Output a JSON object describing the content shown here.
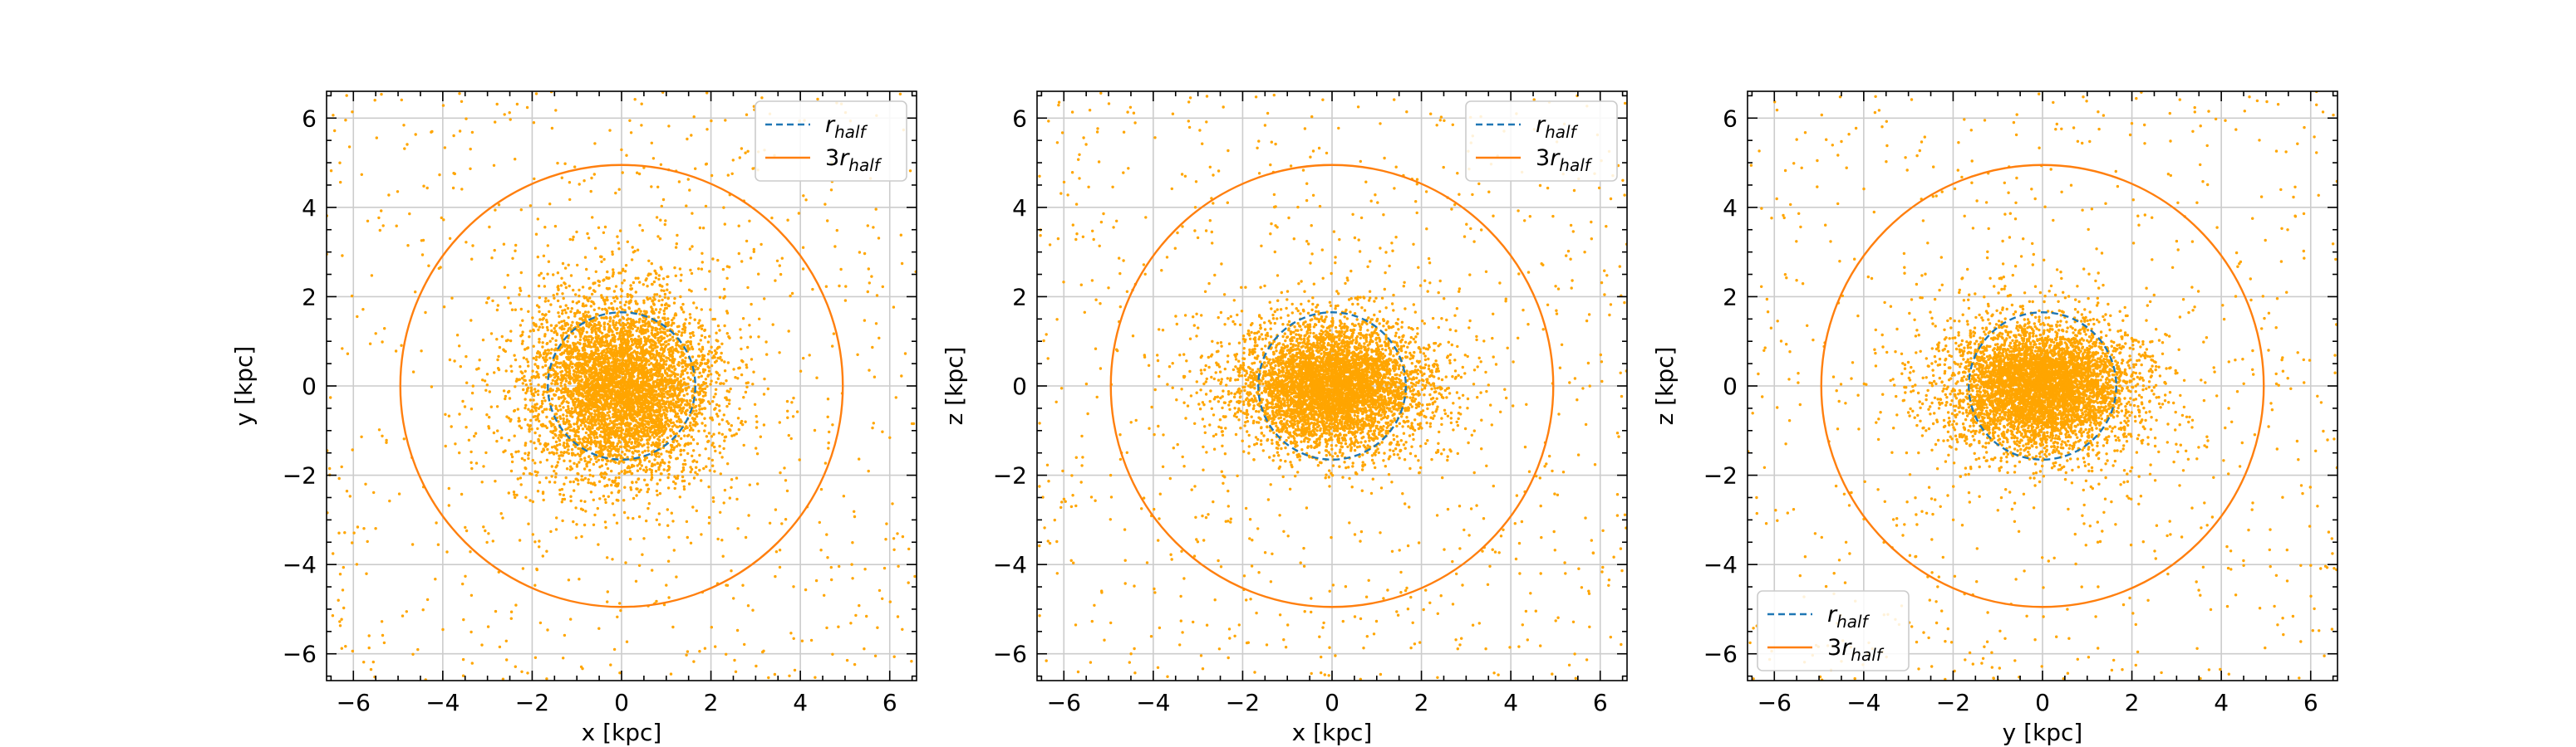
{
  "colors": {
    "points": "#ffa500",
    "rhalf_circle": "#1f77b4",
    "three_rhalf_circle": "#ff7f0e",
    "grid": "#cccccc",
    "axes": "#000000",
    "legend_border": "#cccccc"
  },
  "chart_data": [
    {
      "type": "scatter",
      "xlabel": "x [kpc]",
      "ylabel": "y [kpc]",
      "xlim": [
        -6.6,
        6.6
      ],
      "ylim": [
        -6.6,
        6.6
      ],
      "xticks": [
        -6,
        -4,
        -2,
        0,
        2,
        4,
        6
      ],
      "yticks": [
        -6,
        -4,
        -2,
        0,
        2,
        4,
        6
      ],
      "x_tick_labels": [
        "−6",
        "−4",
        "−2",
        "0",
        "2",
        "4",
        "6"
      ],
      "y_tick_labels": [
        "−6",
        "−4",
        "−2",
        "0",
        "2",
        "4",
        "6"
      ],
      "grid": true,
      "legend_position": "top-right",
      "points": {
        "count": 6000,
        "scale_x": 1.1,
        "scale_y": 1.1
      },
      "circles": [
        {
          "name": "r_half",
          "label_main": "r",
          "label_sub": "half",
          "radius": 1.65,
          "style": "dashed"
        },
        {
          "name": "3r_half",
          "label_main": "3r",
          "label_sub": "half",
          "radius": 4.95,
          "style": "solid"
        }
      ]
    },
    {
      "type": "scatter",
      "xlabel": "x [kpc]",
      "ylabel": "z [kpc]",
      "xlim": [
        -6.6,
        6.6
      ],
      "ylim": [
        -6.6,
        6.6
      ],
      "xticks": [
        -6,
        -4,
        -2,
        0,
        2,
        4,
        6
      ],
      "yticks": [
        -6,
        -4,
        -2,
        0,
        2,
        4,
        6
      ],
      "x_tick_labels": [
        "−6",
        "−4",
        "−2",
        "0",
        "2",
        "4",
        "6"
      ],
      "y_tick_labels": [
        "−6",
        "−4",
        "−2",
        "0",
        "2",
        "4",
        "6"
      ],
      "grid": true,
      "legend_position": "top-right",
      "points": {
        "count": 6000,
        "scale_x": 1.1,
        "scale_y": 0.75
      },
      "circles": [
        {
          "name": "r_half",
          "label_main": "r",
          "label_sub": "half",
          "radius": 1.65,
          "style": "dashed"
        },
        {
          "name": "3r_half",
          "label_main": "3r",
          "label_sub": "half",
          "radius": 4.95,
          "style": "solid"
        }
      ]
    },
    {
      "type": "scatter",
      "xlabel": "y [kpc]",
      "ylabel": "z [kpc]",
      "xlim": [
        -6.6,
        6.6
      ],
      "ylim": [
        -6.6,
        6.6
      ],
      "xticks": [
        -6,
        -4,
        -2,
        0,
        2,
        4,
        6
      ],
      "yticks": [
        -6,
        -4,
        -2,
        0,
        2,
        4,
        6
      ],
      "x_tick_labels": [
        "−6",
        "−4",
        "−2",
        "0",
        "2",
        "4",
        "6"
      ],
      "y_tick_labels": [
        "−6",
        "−4",
        "−2",
        "0",
        "2",
        "4",
        "6"
      ],
      "grid": true,
      "legend_position": "bottom-left",
      "points": {
        "count": 6000,
        "scale_x": 1.1,
        "scale_y": 0.75
      },
      "circles": [
        {
          "name": "r_half",
          "label_main": "r",
          "label_sub": "half",
          "radius": 1.65,
          "style": "dashed"
        },
        {
          "name": "3r_half",
          "label_main": "3r",
          "label_sub": "half",
          "radius": 4.95,
          "style": "solid"
        }
      ]
    }
  ]
}
